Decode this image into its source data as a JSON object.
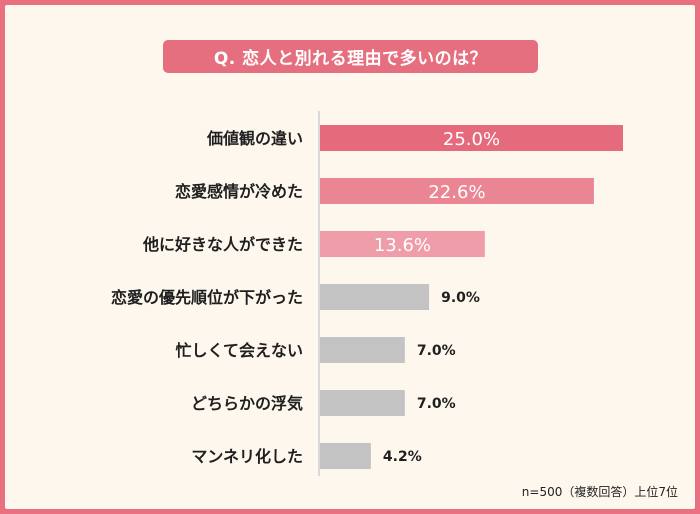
{
  "title": "Q. 恋人と別れる理由で多いのは？",
  "note": "n=500（複数回答）上位7位",
  "colors": {
    "background": "#fdf7ee",
    "frame": "#e8707f",
    "title_bg": "#e56f7f",
    "axis": "#d9d9d9",
    "gray_bar": "#c3c3c3"
  },
  "chart_data": {
    "type": "bar",
    "orientation": "horizontal",
    "categories": [
      "価値観の違い",
      "恋愛感情が冷めた",
      "他に好きな人ができた",
      "恋愛の優先順位が下がった",
      "忙しくて会えない",
      "どちらかの浮気",
      "マンネリ化した"
    ],
    "values": [
      25.0,
      22.6,
      13.6,
      9.0,
      7.0,
      7.0,
      4.2
    ],
    "value_labels": [
      "25.0%",
      "22.6%",
      "13.6%",
      "9.0%",
      "7.0%",
      "7.0%",
      "4.2%"
    ],
    "bar_colors": [
      "#e56b7c",
      "#ea8694",
      "#ef9ea9",
      "#c3c3c3",
      "#c3c3c3",
      "#c3c3c3",
      "#c3c3c3"
    ],
    "label_inside": [
      true,
      true,
      true,
      false,
      false,
      false,
      false
    ],
    "xlim": [
      0,
      25.0
    ]
  }
}
